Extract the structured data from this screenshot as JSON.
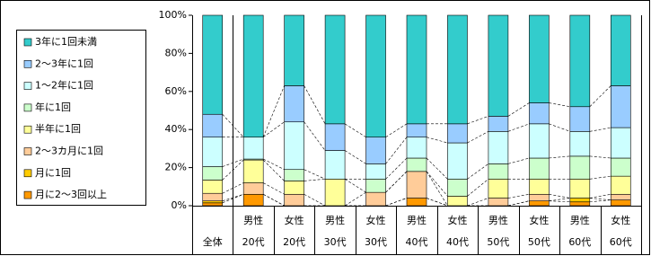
{
  "chart_data": {
    "type": "stacked_bar",
    "categories": [
      [
        "全体"
      ],
      [
        "男性",
        "20代"
      ],
      [
        "女性",
        "20代"
      ],
      [
        "男性",
        "30代"
      ],
      [
        "女性",
        "30代"
      ],
      [
        "男性",
        "40代"
      ],
      [
        "女性",
        "40代"
      ],
      [
        "男性",
        "50代"
      ],
      [
        "女性",
        "50代"
      ],
      [
        "男性",
        "60代"
      ],
      [
        "女性",
        "60代"
      ]
    ],
    "series": [
      {
        "name": "月に2～3回以上",
        "color": "#FF9900",
        "values": [
          1.5,
          6,
          0,
          0,
          0,
          4,
          0,
          0,
          2.5,
          2,
          3
        ]
      },
      {
        "name": "月に1回",
        "color": "#FFCC00",
        "values": [
          1,
          0,
          0,
          0,
          0,
          0,
          0,
          0,
          0,
          2,
          0
        ]
      },
      {
        "name": "2～3カ月に1回",
        "color": "#FFCC99",
        "values": [
          4,
          6,
          6,
          0,
          7,
          14,
          0,
          4,
          3.5,
          0,
          3
        ]
      },
      {
        "name": "半年に1回",
        "color": "#FFFF99",
        "values": [
          7,
          12,
          7,
          14,
          0,
          0,
          5,
          10,
          8,
          10,
          9.5
        ]
      },
      {
        "name": "年に1回",
        "color": "#CCFFCC",
        "values": [
          7,
          0.5,
          6,
          0,
          7,
          7,
          9,
          8,
          11,
          12,
          9.5
        ]
      },
      {
        "name": "1～2年に1回",
        "color": "#CCFFFF",
        "values": [
          15.5,
          11.5,
          25,
          15,
          8,
          11,
          19,
          17,
          18,
          13,
          16
        ]
      },
      {
        "name": "2～3年に1回",
        "color": "#99CCFF",
        "values": [
          12,
          0,
          19,
          14,
          14,
          7,
          10,
          8,
          11,
          13,
          22
        ]
      },
      {
        "name": "3年に1回未満",
        "color": "#33CCCC",
        "values": [
          52,
          64,
          37,
          57,
          64,
          57,
          57,
          53,
          46,
          48,
          37
        ]
      }
    ],
    "ylim": [
      0,
      100
    ],
    "yticks": [
      {
        "value": 0,
        "label": "0%"
      },
      {
        "value": 20,
        "label": "20%"
      },
      {
        "value": 40,
        "label": "40%"
      },
      {
        "value": 60,
        "label": "60%"
      },
      {
        "value": 80,
        "label": "80%"
      },
      {
        "value": 100,
        "label": "100%"
      }
    ],
    "legend": "left"
  }
}
